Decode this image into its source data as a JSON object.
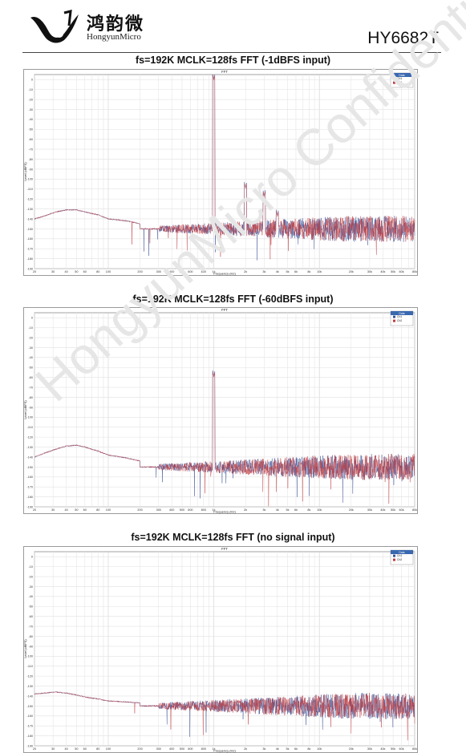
{
  "header": {
    "logo_cn": "鸿韵微",
    "logo_en": "HongyunMicro",
    "part_number": "HY6682T"
  },
  "watermark": "HongyunMicro Confidential",
  "chart_data": [
    {
      "type": "line",
      "section_title": "fs=192K MCLK=128fs FFT (-1dBFS input)",
      "title": "FFT",
      "xlabel": "Frequency (Hz)",
      "ylabel": "Level (dBFS)",
      "xscale": "log",
      "xlim": [
        20,
        80000
      ],
      "ylim": [
        -190,
        5
      ],
      "grid": true,
      "legend_title": "Data",
      "legend_position": "top-right",
      "xticks": [
        "20",
        "30",
        "40",
        "50",
        "60",
        "80",
        "100",
        "200",
        "300",
        "400",
        "500",
        "600",
        "800",
        "1k",
        "2k",
        "3k",
        "4k",
        "5k",
        "6k",
        "8k",
        "10k",
        "20k",
        "30k",
        "40k",
        "50k",
        "60k",
        "80k"
      ],
      "yticks": [
        "0",
        "-10",
        "-20",
        "-30",
        "-40",
        "-50",
        "-60",
        "-70",
        "-80",
        "-90",
        "-100",
        "-110",
        "-120",
        "-130",
        "-140",
        "-150",
        "-160",
        "-170",
        "-180",
        "-190"
      ],
      "series": [
        {
          "name": "Ch1",
          "color": "#3b4f96"
        },
        {
          "name": "Ch2",
          "color": "#c0393d"
        }
      ],
      "noise_floor": -150,
      "low_freq_curve": {
        "freqs": [
          20,
          25,
          32,
          40,
          50,
          60,
          80,
          100,
          150,
          200
        ],
        "levels": [
          -140,
          -137,
          -133,
          -131,
          -131,
          -133,
          -136,
          -140,
          -142,
          -145
        ]
      },
      "peaks": [
        {
          "freq": 1000,
          "level": -1
        },
        {
          "freq": 2000,
          "level": -110
        },
        {
          "freq": 3000,
          "level": -118
        },
        {
          "freq": 4000,
          "level": -138
        }
      ]
    },
    {
      "type": "line",
      "section_title": "fs=192K MCLK=128fs FFT (-60dBFS input)",
      "title": "FFT",
      "xlabel": "Frequency (Hz)",
      "ylabel": "Level (dBFS)",
      "xscale": "log",
      "xlim": [
        20,
        80000
      ],
      "ylim": [
        -190,
        5
      ],
      "grid": true,
      "legend_title": "Data",
      "legend_position": "top-right",
      "xticks": [
        "20",
        "30",
        "40",
        "50",
        "60",
        "80",
        "100",
        "200",
        "300",
        "400",
        "500",
        "600",
        "800",
        "1k",
        "2k",
        "3k",
        "4k",
        "5k",
        "6k",
        "8k",
        "10k",
        "20k",
        "30k",
        "40k",
        "50k",
        "60k",
        "80k"
      ],
      "yticks": [
        "0",
        "-10",
        "-20",
        "-30",
        "-40",
        "-50",
        "-60",
        "-70",
        "-80",
        "-90",
        "-100",
        "-110",
        "-120",
        "-130",
        "-140",
        "-150",
        "-160",
        "-170",
        "-180",
        "-190"
      ],
      "series": [
        {
          "name": "Ch1",
          "color": "#3b4f96"
        },
        {
          "name": "Ch2",
          "color": "#c0393d"
        }
      ],
      "noise_floor": -150,
      "low_freq_curve": {
        "freqs": [
          20,
          25,
          32,
          40,
          50,
          60,
          80,
          100,
          150,
          200
        ],
        "levels": [
          -140,
          -136,
          -132,
          -129,
          -128,
          -130,
          -134,
          -138,
          -141,
          -144
        ]
      },
      "peaks": [
        {
          "freq": 1000,
          "level": -60
        }
      ]
    },
    {
      "type": "line",
      "section_title": "fs=192K MCLK=128fs FFT (no signal input)",
      "title": "FFT",
      "xlabel": "Frequency (Hz)",
      "ylabel": "Level (dBFS)",
      "xscale": "log",
      "xlim": [
        20,
        80000
      ],
      "ylim": [
        -190,
        5
      ],
      "grid": true,
      "legend_title": "Data",
      "legend_position": "top-right",
      "xticks": [
        "20",
        "30",
        "40",
        "50",
        "60",
        "80",
        "100",
        "200",
        "300",
        "400",
        "500",
        "600",
        "800",
        "1k",
        "2k",
        "3k",
        "4k",
        "5k",
        "6k",
        "8k",
        "10k",
        "20k",
        "30k",
        "40k",
        "50k",
        "60k",
        "80k"
      ],
      "yticks": [
        "0",
        "-10",
        "-20",
        "-30",
        "-40",
        "-50",
        "-60",
        "-70",
        "-80",
        "-90",
        "-100",
        "-110",
        "-120",
        "-130",
        "-140",
        "-150",
        "-160",
        "-170",
        "-180",
        "-190"
      ],
      "series": [
        {
          "name": "Ch1",
          "color": "#3b4f96"
        },
        {
          "name": "Ch2",
          "color": "#c0393d"
        }
      ],
      "noise_floor": -150,
      "low_freq_curve": {
        "freqs": [
          20,
          25,
          32,
          40,
          50,
          60,
          80,
          100,
          150,
          200
        ],
        "levels": [
          -138,
          -137,
          -136,
          -137,
          -139,
          -141,
          -143,
          -145,
          -146,
          -147
        ]
      },
      "peaks": []
    }
  ]
}
